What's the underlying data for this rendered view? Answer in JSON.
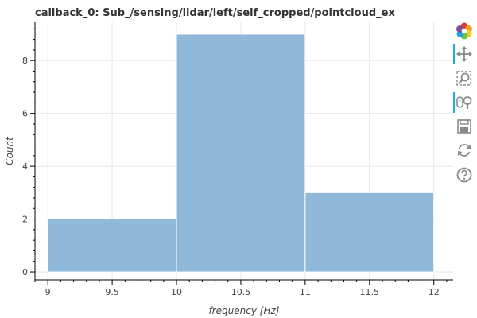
{
  "chart_data": {
    "type": "bar",
    "title": "callback_0: Sub_/sensing/lidar/left/self_cropped/pointcloud_ex",
    "xlabel": "frequency [Hz]",
    "ylabel": "Count",
    "bins": [
      {
        "start": 9,
        "end": 10,
        "value": 2
      },
      {
        "start": 10,
        "end": 11,
        "value": 9
      },
      {
        "start": 11,
        "end": 12,
        "value": 3
      }
    ],
    "xlim": [
      8.9,
      12.15
    ],
    "ylim": [
      -0.3,
      9.45
    ],
    "x_ticks": [
      9,
      9.5,
      10,
      10.5,
      11,
      11.5,
      12
    ],
    "x_tick_labels": [
      "9",
      "9.5",
      "10",
      "10.5",
      "11",
      "11.5",
      "12"
    ],
    "y_ticks": [
      0,
      2,
      4,
      6,
      8
    ],
    "y_tick_labels": [
      "0",
      "2",
      "4",
      "6",
      "8"
    ],
    "grid": true,
    "bar_color": "#8fb8d9"
  },
  "toolbar": {
    "items": [
      {
        "icon": "bokeh-logo-icon",
        "active": false
      },
      {
        "icon": "pan-icon",
        "active": true
      },
      {
        "icon": "box-zoom-icon",
        "active": false
      },
      {
        "icon": "wheel-zoom-icon",
        "active": true
      },
      {
        "icon": "save-icon",
        "active": false
      },
      {
        "icon": "reset-icon",
        "active": false
      },
      {
        "icon": "help-icon",
        "active": false
      }
    ]
  }
}
